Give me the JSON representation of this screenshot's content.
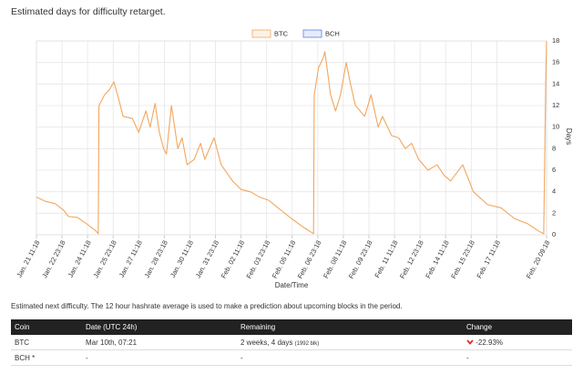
{
  "chart_data": {
    "type": "line",
    "title": "Estimated days for difficulty retarget.",
    "x_label": "Date/Time",
    "y_label": "Days",
    "y_axis_side": "right",
    "grid": true,
    "xlim": [
      0,
      718
    ],
    "ylim": [
      0,
      18
    ],
    "xticks": [
      {
        "value": 0,
        "label": "Jan. 21 11:18"
      },
      {
        "value": 36,
        "label": "Jan. 22 23:18"
      },
      {
        "value": 72,
        "label": "Jan. 24 11:18"
      },
      {
        "value": 108,
        "label": "Jan. 25 23:18"
      },
      {
        "value": 144,
        "label": "Jan. 27 11:18"
      },
      {
        "value": 180,
        "label": "Jan. 28 23:18"
      },
      {
        "value": 216,
        "label": "Jan. 30 11:18"
      },
      {
        "value": 252,
        "label": "Jan. 31 23:18"
      },
      {
        "value": 288,
        "label": "Feb. 02 11:18"
      },
      {
        "value": 324,
        "label": "Feb. 03 23:18"
      },
      {
        "value": 360,
        "label": "Feb. 05 11:18"
      },
      {
        "value": 396,
        "label": "Feb. 06 23:18"
      },
      {
        "value": 432,
        "label": "Feb. 08 11:18"
      },
      {
        "value": 468,
        "label": "Feb. 09 23:18"
      },
      {
        "value": 504,
        "label": "Feb. 11 11:18"
      },
      {
        "value": 540,
        "label": "Feb. 12 23:18"
      },
      {
        "value": 576,
        "label": "Feb. 14 11:18"
      },
      {
        "value": 612,
        "label": "Feb. 15 23:18"
      },
      {
        "value": 648,
        "label": "Feb. 17 11:18"
      },
      {
        "value": 718,
        "label": "Feb. 20 09:18"
      }
    ],
    "yticks": [
      0,
      2,
      4,
      6,
      8,
      10,
      12,
      14,
      16,
      18
    ],
    "series": [
      {
        "name": "BTC",
        "color": "#f2a65e",
        "x": [
          0,
          13,
          26,
          38,
          45,
          58,
          71,
          83,
          87,
          88,
          96,
          103,
          109,
          115,
          122,
          135,
          144,
          154,
          160,
          167,
          173,
          179,
          183,
          190,
          199,
          205,
          212,
          222,
          231,
          237,
          250,
          260,
          276,
          288,
          301,
          314,
          327,
          340,
          359,
          378,
          390,
          391,
          397,
          404,
          406,
          414,
          421,
          428,
          436,
          442,
          449,
          462,
          471,
          481,
          487,
          500,
          510,
          519,
          528,
          538,
          551,
          564,
          574,
          583,
          600,
          609,
          615,
          635,
          654,
          673,
          692,
          708,
          714,
          717,
          718
        ],
        "values": [
          3.5,
          3.1,
          2.9,
          2.3,
          1.7,
          1.6,
          1.0,
          0.4,
          0.1,
          12,
          13,
          13.5,
          14.2,
          12.8,
          11,
          10.8,
          9.5,
          11.5,
          10,
          12.2,
          9.5,
          8,
          7.5,
          12,
          8,
          9,
          6.5,
          7,
          8.5,
          7,
          9,
          6.5,
          5,
          4.2,
          4,
          3.5,
          3.2,
          2.5,
          1.5,
          0.6,
          0.1,
          13,
          15.5,
          16.5,
          17,
          13,
          11.5,
          13,
          16,
          14,
          12,
          11,
          13,
          10,
          11,
          9.2,
          9,
          8,
          8.5,
          7,
          6,
          6.5,
          5.5,
          5,
          6.5,
          5,
          4,
          2.8,
          2.5,
          1.5,
          1,
          0.3,
          0.1,
          15,
          18
        ]
      },
      {
        "name": "BCH",
        "color": "#5b7fe0",
        "x": [],
        "values": []
      }
    ]
  },
  "note": "Estimated next difficulty. The 12 hour hashrate average is used to make a prediction about upcoming blocks in the period.",
  "table": {
    "header": [
      "Coin",
      "Date (UTC 24h)",
      "Remaining",
      "Change"
    ],
    "rows": [
      {
        "coin": "BTC",
        "date": "Mar 10th, 07:21",
        "remaining": "2 weeks, 4 days",
        "blocks": "(1992 blk)",
        "change": "-22.93%"
      },
      {
        "coin": "BCH *",
        "date": "-",
        "remaining": "-",
        "change": "-"
      }
    ]
  }
}
